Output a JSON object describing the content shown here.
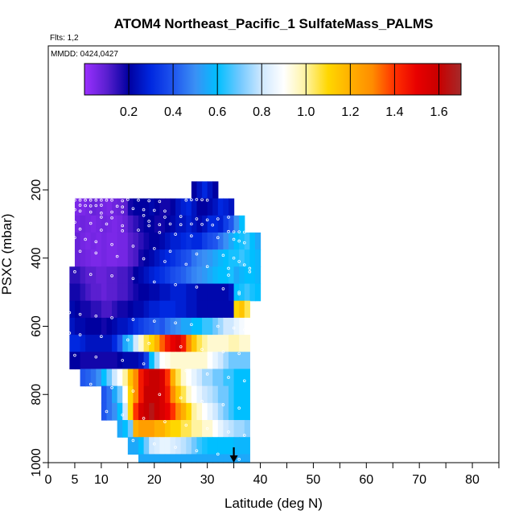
{
  "chart_data": {
    "type": "heatmap",
    "title": "ATOM4 Northeast_Pacific_1 SulfateMass_PALMS",
    "flights_label": "Flts: 1,2",
    "mmdd_label": "MMDD: 0424,0427",
    "xlabel": "Latitude (deg N)",
    "ylabel": "PSXC (mbar)",
    "xlim": [
      0,
      85
    ],
    "ylim": [
      1000,
      0
    ],
    "x_ticks": [
      0,
      5,
      10,
      20,
      30,
      40,
      50,
      60,
      70,
      80
    ],
    "x_minor_ticks": [
      15,
      25,
      35,
      45,
      55,
      65,
      75,
      85
    ],
    "y_ticks": [
      200,
      400,
      600,
      800,
      1000
    ],
    "colorbar": {
      "range": [
        0,
        1.7
      ],
      "ticks": [
        0.2,
        0.4,
        0.6,
        0.8,
        1.0,
        1.2,
        1.4,
        1.6
      ],
      "tick_labels": [
        "0.2",
        "0.4",
        "0.6",
        "0.8",
        "1.0",
        "1.2",
        "1.4",
        "1.6"
      ],
      "stops": [
        {
          "v": 0.0,
          "c": "#9b30ff"
        },
        {
          "v": 0.1,
          "c": "#5a1fd0"
        },
        {
          "v": 0.2,
          "c": "#0000a0"
        },
        {
          "v": 0.3,
          "c": "#0028e0"
        },
        {
          "v": 0.4,
          "c": "#1f55ee"
        },
        {
          "v": 0.5,
          "c": "#3a90f5"
        },
        {
          "v": 0.6,
          "c": "#00bfff"
        },
        {
          "v": 0.7,
          "c": "#70c8ff"
        },
        {
          "v": 0.8,
          "c": "#cfe8ff"
        },
        {
          "v": 0.9,
          "c": "#ffffff"
        },
        {
          "v": 1.0,
          "c": "#fff3a0"
        },
        {
          "v": 1.1,
          "c": "#ffd700"
        },
        {
          "v": 1.2,
          "c": "#ffb000"
        },
        {
          "v": 1.3,
          "c": "#ff8c00"
        },
        {
          "v": 1.4,
          "c": "#ff3000"
        },
        {
          "v": 1.5,
          "c": "#e80000"
        },
        {
          "v": 1.6,
          "c": "#c80000"
        },
        {
          "v": 1.7,
          "c": "#a52a2a"
        }
      ]
    },
    "heatmap_rows": [
      {
        "p_top": 175,
        "p_bot": 225,
        "lat_start": 27,
        "lat_end": 32,
        "values": [
          0.2,
          0.25,
          0.3,
          0.25,
          0.2
        ]
      },
      {
        "p_top": 225,
        "p_bot": 275,
        "lat_start": 5,
        "lat_end": 35,
        "values": [
          0.05,
          0.05,
          0.06,
          0.08,
          0.07,
          0.06,
          0.05,
          0.07,
          0.08,
          0.1,
          0.18,
          0.2,
          0.2,
          0.2,
          0.22,
          0.2,
          0.18,
          0.18,
          0.2,
          0.25,
          0.28,
          0.3,
          0.25,
          0.2,
          0.2,
          0.22,
          0.25,
          0.3,
          0.28,
          0.25
        ]
      },
      {
        "p_top": 275,
        "p_bot": 325,
        "lat_start": 5,
        "lat_end": 37,
        "values": [
          0.06,
          0.07,
          0.06,
          0.05,
          0.06,
          0.07,
          0.06,
          0.05,
          0.06,
          0.08,
          0.12,
          0.15,
          0.18,
          0.2,
          0.2,
          0.18,
          0.18,
          0.2,
          0.22,
          0.25,
          0.25,
          0.28,
          0.25,
          0.22,
          0.25,
          0.3,
          0.3,
          0.28,
          0.35,
          0.4,
          0.5,
          0.6
        ]
      },
      {
        "p_top": 325,
        "p_bot": 375,
        "lat_start": 5,
        "lat_end": 40,
        "values": [
          0.08,
          0.06,
          0.05,
          0.06,
          0.05,
          0.06,
          0.05,
          0.05,
          0.06,
          0.06,
          0.1,
          0.12,
          0.15,
          0.18,
          0.2,
          0.2,
          0.22,
          0.25,
          0.28,
          0.28,
          0.3,
          0.32,
          0.3,
          0.3,
          0.35,
          0.38,
          0.4,
          0.45,
          0.5,
          0.55,
          0.6,
          0.62,
          0.65,
          0.6,
          0.55
        ]
      },
      {
        "p_top": 375,
        "p_bot": 425,
        "lat_start": 5,
        "lat_end": 40,
        "values": [
          0.08,
          0.07,
          0.06,
          0.05,
          0.05,
          0.06,
          0.05,
          0.05,
          0.06,
          0.06,
          0.1,
          0.12,
          0.18,
          0.2,
          0.22,
          0.25,
          0.28,
          0.3,
          0.32,
          0.35,
          0.38,
          0.4,
          0.45,
          0.48,
          0.5,
          0.52,
          0.55,
          0.58,
          0.6,
          0.62,
          0.62,
          0.65,
          0.62,
          0.6,
          0.58
        ]
      },
      {
        "p_top": 425,
        "p_bot": 475,
        "lat_start": 4,
        "lat_end": 40,
        "values": [
          0.15,
          0.15,
          0.12,
          0.1,
          0.1,
          0.08,
          0.08,
          0.1,
          0.1,
          0.12,
          0.12,
          0.15,
          0.2,
          0.22,
          0.25,
          0.28,
          0.3,
          0.32,
          0.35,
          0.38,
          0.4,
          0.42,
          0.45,
          0.48,
          0.5,
          0.52,
          0.55,
          0.58,
          0.6,
          0.6,
          0.62,
          0.55,
          0.58,
          0.6,
          0.6,
          0.58
        ]
      },
      {
        "p_top": 475,
        "p_bot": 525,
        "lat_start": 4,
        "lat_end": 40,
        "values": [
          0.18,
          0.18,
          0.15,
          0.12,
          0.1,
          0.1,
          0.08,
          0.1,
          0.1,
          0.12,
          0.12,
          0.15,
          0.18,
          0.2,
          0.2,
          0.22,
          0.22,
          0.25,
          0.25,
          0.28,
          0.28,
          0.28,
          0.25,
          0.25,
          0.22,
          0.22,
          0.22,
          0.22,
          0.22,
          0.22,
          0.25,
          0.6,
          0.62,
          0.65,
          0.62,
          0.6
        ]
      },
      {
        "p_top": 525,
        "p_bot": 575,
        "lat_start": 4,
        "lat_end": 38,
        "values": [
          0.22,
          0.2,
          0.18,
          0.18,
          0.15,
          0.15,
          0.12,
          0.12,
          0.15,
          0.18,
          0.18,
          0.2,
          0.22,
          0.22,
          0.25,
          0.28,
          0.28,
          0.3,
          0.3,
          0.3,
          0.28,
          0.28,
          0.25,
          0.25,
          0.22,
          0.22,
          0.22,
          0.22,
          0.22,
          0.22,
          0.22,
          1.1,
          1.15,
          1.05
        ]
      },
      {
        "p_top": 575,
        "p_bot": 625,
        "lat_start": 4,
        "lat_end": 38,
        "values": [
          0.25,
          0.22,
          0.22,
          0.2,
          0.2,
          0.2,
          0.18,
          0.2,
          0.22,
          0.25,
          0.25,
          0.28,
          0.32,
          0.35,
          0.38,
          0.4,
          0.42,
          0.4,
          0.45,
          0.48,
          0.5,
          0.55,
          0.55,
          0.6,
          0.6,
          0.65,
          0.65,
          0.7,
          0.75,
          0.8,
          0.8,
          0.85,
          0.88,
          0.9
        ]
      },
      {
        "p_top": 625,
        "p_bot": 675,
        "lat_start": 4,
        "lat_end": 38,
        "values": [
          0.3,
          0.3,
          0.28,
          0.25,
          0.25,
          0.25,
          0.25,
          0.25,
          0.3,
          0.4,
          0.55,
          0.65,
          0.8,
          0.95,
          1.05,
          1.1,
          1.2,
          1.35,
          1.45,
          1.5,
          1.55,
          1.45,
          1.3,
          1.15,
          1.05,
          1.0,
          0.95,
          0.95,
          0.95,
          0.95,
          0.98,
          0.98,
          0.95,
          0.95
        ]
      },
      {
        "p_top": 675,
        "p_bot": 725,
        "lat_start": 4,
        "lat_end": 38,
        "values": [
          0.2,
          0.2,
          0.18,
          0.18,
          0.18,
          0.18,
          0.18,
          0.18,
          0.18,
          0.2,
          0.22,
          0.22,
          0.22,
          0.25,
          0.35,
          0.6,
          0.75,
          0.9,
          0.92,
          0.95,
          0.95,
          0.95,
          0.95,
          0.95,
          0.95,
          0.95,
          0.9,
          0.85,
          0.8,
          0.75,
          0.7,
          0.7,
          0.7,
          0.7
        ]
      },
      {
        "p_top": 725,
        "p_bot": 775,
        "lat_start": 6,
        "lat_end": 38,
        "values": [
          0.4,
          0.42,
          0.45,
          0.5,
          0.6,
          0.7,
          0.8,
          0.9,
          1.0,
          1.15,
          1.3,
          1.45,
          1.55,
          1.6,
          1.6,
          1.55,
          1.4,
          1.2,
          1.05,
          0.95,
          0.9,
          0.85,
          0.8,
          0.75,
          0.75,
          0.7,
          0.7,
          0.65,
          0.65,
          0.6,
          0.6,
          0.6
        ]
      },
      {
        "p_top": 775,
        "p_bot": 825,
        "lat_start": 10,
        "lat_end": 38,
        "values": [
          0.4,
          0.45,
          0.55,
          0.7,
          0.9,
          1.1,
          1.3,
          1.45,
          1.6,
          1.6,
          1.6,
          1.55,
          1.45,
          1.3,
          1.15,
          1.05,
          0.95,
          0.9,
          0.85,
          0.8,
          0.78,
          0.75,
          0.7,
          0.7,
          0.65,
          0.6,
          0.6,
          0.6
        ]
      },
      {
        "p_top": 825,
        "p_bot": 875,
        "lat_start": 10,
        "lat_end": 38,
        "values": [
          0.4,
          0.45,
          0.5,
          0.6,
          0.8,
          1.1,
          1.4,
          1.55,
          1.6,
          1.65,
          1.6,
          1.55,
          1.5,
          1.4,
          1.3,
          1.2,
          1.1,
          1.0,
          0.95,
          0.9,
          0.85,
          0.8,
          0.75,
          0.7,
          0.65,
          0.6,
          0.6,
          0.6
        ]
      },
      {
        "p_top": 875,
        "p_bot": 925,
        "lat_start": 13,
        "lat_end": 38,
        "values": [
          0.55,
          0.6,
          0.7,
          1.2,
          1.25,
          1.25,
          1.25,
          1.2,
          1.2,
          1.15,
          1.1,
          1.1,
          1.05,
          1.05,
          1.0,
          1.0,
          0.95,
          0.95,
          0.9,
          0.85,
          0.8,
          0.78,
          0.75,
          0.75,
          0.72
        ]
      },
      {
        "p_top": 925,
        "p_bot": 975,
        "lat_start": 15,
        "lat_end": 38,
        "values": [
          0.55,
          0.55,
          0.6,
          0.7,
          0.8,
          0.82,
          0.85,
          0.85,
          0.82,
          0.8,
          0.78,
          0.75,
          0.7,
          0.65,
          0.62,
          0.6,
          0.6,
          0.6,
          0.6,
          0.6,
          0.58,
          0.58,
          0.58
        ]
      },
      {
        "p_top": 975,
        "p_bot": 1000,
        "lat_start": 17,
        "lat_end": 38,
        "values": [
          0.55,
          0.55,
          0.55,
          0.55,
          0.55,
          0.55,
          0.55,
          0.55,
          0.55,
          0.55,
          0.55,
          0.55,
          0.55,
          0.55,
          0.55,
          0.55,
          0.55,
          0.55,
          0.55,
          0.55,
          0.55
        ]
      }
    ],
    "sample_points": [
      [
        5,
        230
      ],
      [
        6,
        230
      ],
      [
        7,
        230
      ],
      [
        8,
        230
      ],
      [
        9,
        230
      ],
      [
        10,
        230
      ],
      [
        11,
        230
      ],
      [
        12,
        230
      ],
      [
        14,
        232
      ],
      [
        15,
        228
      ],
      [
        17,
        230
      ],
      [
        19,
        232
      ],
      [
        21,
        234
      ],
      [
        26,
        230
      ],
      [
        27,
        229
      ],
      [
        28,
        228
      ],
      [
        29,
        229
      ],
      [
        30,
        230
      ],
      [
        6,
        245
      ],
      [
        7,
        246
      ],
      [
        8,
        247
      ],
      [
        9,
        246
      ],
      [
        10,
        245
      ],
      [
        13,
        248
      ],
      [
        14,
        250
      ],
      [
        16,
        255
      ],
      [
        18,
        258
      ],
      [
        20,
        260
      ],
      [
        22,
        262
      ],
      [
        5,
        258
      ],
      [
        6,
        262
      ],
      [
        8,
        265
      ],
      [
        10,
        268
      ],
      [
        12,
        265
      ],
      [
        14,
        265
      ],
      [
        10,
        280
      ],
      [
        12,
        282
      ],
      [
        18,
        275
      ],
      [
        22,
        280
      ],
      [
        25,
        278
      ],
      [
        28,
        285
      ],
      [
        30,
        288
      ],
      [
        32,
        285
      ],
      [
        34,
        280
      ],
      [
        19,
        292
      ],
      [
        5,
        295
      ],
      [
        8,
        298
      ],
      [
        11,
        300
      ],
      [
        14,
        305
      ],
      [
        19,
        305
      ],
      [
        21,
        302
      ],
      [
        23,
        300
      ],
      [
        25,
        302
      ],
      [
        27,
        300
      ],
      [
        29,
        301
      ],
      [
        31,
        303
      ],
      [
        34,
        322
      ],
      [
        35,
        323
      ],
      [
        36,
        323
      ],
      [
        37,
        324
      ],
      [
        6,
        315
      ],
      [
        10,
        318
      ],
      [
        14,
        320
      ],
      [
        17,
        318
      ],
      [
        21,
        325
      ],
      [
        24,
        330
      ],
      [
        27,
        335
      ],
      [
        32,
        340
      ],
      [
        35,
        345
      ],
      [
        36,
        350
      ],
      [
        37,
        355
      ],
      [
        5,
        340
      ],
      [
        7,
        345
      ],
      [
        9,
        352
      ],
      [
        12,
        360
      ],
      [
        16,
        365
      ],
      [
        20,
        372
      ],
      [
        23,
        380
      ],
      [
        28,
        388
      ],
      [
        33,
        392
      ],
      [
        35,
        400
      ],
      [
        36,
        410
      ],
      [
        37,
        420
      ],
      [
        38,
        430
      ],
      [
        38,
        440
      ],
      [
        34,
        450
      ],
      [
        6,
        380
      ],
      [
        9,
        385
      ],
      [
        13,
        395
      ],
      [
        18,
        402
      ],
      [
        22,
        410
      ],
      [
        26,
        418
      ],
      [
        30,
        425
      ],
      [
        34,
        430
      ],
      [
        5,
        440
      ],
      [
        8,
        448
      ],
      [
        12,
        452
      ],
      [
        16,
        460
      ],
      [
        20,
        470
      ],
      [
        24,
        478
      ],
      [
        28,
        485
      ],
      [
        33,
        490
      ],
      [
        36,
        500
      ],
      [
        36,
        505
      ],
      [
        4,
        560
      ],
      [
        6,
        565
      ],
      [
        9,
        570
      ],
      [
        12,
        575
      ],
      [
        16,
        580
      ],
      [
        20,
        585
      ],
      [
        24,
        590
      ],
      [
        27,
        595
      ],
      [
        32,
        600
      ],
      [
        35,
        605
      ],
      [
        37,
        610
      ],
      [
        38,
        615
      ],
      [
        4,
        620
      ],
      [
        6,
        625
      ],
      [
        10,
        630
      ],
      [
        15,
        640
      ],
      [
        19,
        650
      ],
      [
        25,
        660
      ],
      [
        29,
        668
      ],
      [
        33,
        675
      ],
      [
        36,
        680
      ],
      [
        5,
        685
      ],
      [
        9,
        690
      ],
      [
        14,
        700
      ],
      [
        18,
        710
      ],
      [
        22,
        720
      ],
      [
        26,
        730
      ],
      [
        30,
        740
      ],
      [
        34,
        750
      ],
      [
        37,
        760
      ],
      [
        8,
        770
      ],
      [
        12,
        780
      ],
      [
        16,
        790
      ],
      [
        21,
        800
      ],
      [
        25,
        810
      ],
      [
        29,
        820
      ],
      [
        33,
        830
      ],
      [
        36,
        840
      ],
      [
        11,
        850
      ],
      [
        14,
        860
      ],
      [
        18,
        870
      ],
      [
        22,
        880
      ],
      [
        26,
        890
      ],
      [
        30,
        900
      ],
      [
        34,
        910
      ],
      [
        37,
        920
      ],
      [
        16,
        935
      ],
      [
        20,
        945
      ],
      [
        24,
        955
      ],
      [
        28,
        965
      ],
      [
        32,
        975
      ],
      [
        35,
        985
      ],
      [
        36,
        990
      ]
    ],
    "arrow_marker": {
      "lat": 35,
      "p_from": 955,
      "p_to": 1000
    }
  }
}
